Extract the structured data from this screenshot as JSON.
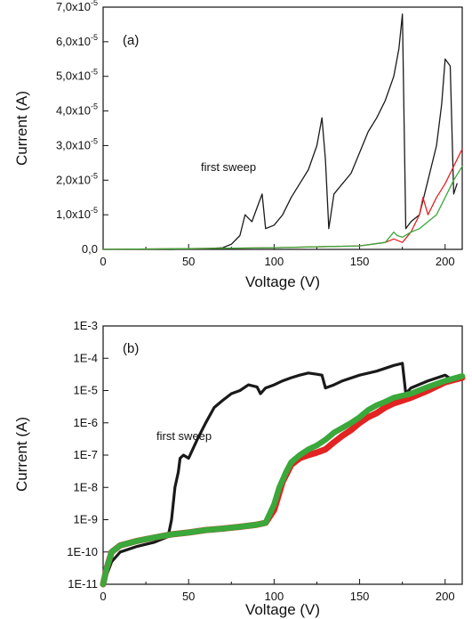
{
  "chart_data": [
    {
      "type": "line",
      "panel_label": "(a)",
      "xlabel": "Voltage (V)",
      "ylabel": "Current (A)",
      "xlim": [
        0,
        210
      ],
      "ylim": [
        0,
        7e-05
      ],
      "x_ticks": [
        "0",
        "50",
        "100",
        "150",
        "200"
      ],
      "y_ticks": [
        "0,0",
        "1,0x10-5",
        "2,0x10-5",
        "3,0x10-5",
        "4,0x10-5",
        "5,0x10-5",
        "6,0x10-5",
        "7,0x10-5"
      ],
      "annotation": "first sweep",
      "colors": [
        "#1a1a1a",
        "#e32222",
        "#3aa83a"
      ],
      "series": [
        {
          "color": "#1a1a1a",
          "x": [
            0,
            20,
            40,
            60,
            70,
            75,
            80,
            83,
            87,
            90,
            93,
            95,
            100,
            105,
            110,
            115,
            120,
            125,
            128,
            130,
            132,
            135,
            140,
            145,
            150,
            155,
            160,
            165,
            170,
            173,
            175,
            177,
            180,
            185,
            190,
            195,
            198,
            200,
            203,
            205,
            207
          ],
          "y": [
            0,
            0,
            0,
            2e-07,
            5e-07,
            1.5e-06,
            4e-06,
            1e-05,
            8e-06,
            1.2e-05,
            1.6e-05,
            6e-06,
            7e-06,
            1e-05,
            1.5e-05,
            1.9e-05,
            2.3e-05,
            3e-05,
            3.8e-05,
            2.6e-05,
            6e-06,
            1.6e-05,
            1.9e-05,
            2.2e-05,
            2.8e-05,
            3.4e-05,
            3.8e-05,
            4.3e-05,
            5e-05,
            5.8e-05,
            6.8e-05,
            6e-06,
            8e-06,
            1e-05,
            2e-05,
            3e-05,
            4.2e-05,
            5.5e-05,
            5.3e-05,
            1.6e-05,
            1.9e-05
          ]
        },
        {
          "color": "#e32222",
          "x": [
            0,
            50,
            100,
            150,
            165,
            170,
            175,
            180,
            185,
            187,
            190,
            195,
            200,
            205,
            210
          ],
          "y": [
            0,
            2e-07,
            5e-07,
            1e-06,
            2e-06,
            3e-06,
            2e-06,
            5e-06,
            1e-05,
            1.5e-05,
            1e-05,
            1.5e-05,
            1.9e-05,
            2.4e-05,
            2.9e-05
          ]
        },
        {
          "color": "#3aa83a",
          "x": [
            0,
            50,
            100,
            150,
            165,
            170,
            172,
            175,
            180,
            185,
            190,
            195,
            200,
            205,
            210
          ],
          "y": [
            0,
            2e-07,
            5e-07,
            1e-06,
            2e-06,
            5e-06,
            4e-06,
            3.5e-06,
            5e-06,
            6e-06,
            8e-06,
            1e-05,
            1.5e-05,
            2e-05,
            2.4e-05
          ]
        }
      ]
    },
    {
      "type": "line",
      "panel_label": "(b)",
      "xlabel": "Voltage (V)",
      "ylabel": "Current (A)",
      "xlim": [
        0,
        210
      ],
      "ylim": [
        1e-11,
        0.001
      ],
      "yscale": "log",
      "x_ticks": [
        "0",
        "50",
        "100",
        "150",
        "200"
      ],
      "y_ticks": [
        "1E-11",
        "1E-10",
        "1E-9",
        "1E-8",
        "1E-7",
        "1E-6",
        "1E-5",
        "1E-4",
        "1E-3"
      ],
      "annotation": "first sweep",
      "colors": [
        "#1a1a1a",
        "#e32222",
        "#3aa83a"
      ],
      "series": [
        {
          "color": "#1a1a1a",
          "x": [
            0,
            5,
            10,
            20,
            30,
            38,
            40,
            42,
            44,
            45,
            47,
            50,
            55,
            60,
            65,
            70,
            75,
            80,
            85,
            90,
            92,
            95,
            100,
            105,
            110,
            115,
            120,
            125,
            128,
            130,
            135,
            140,
            150,
            160,
            170,
            175,
            177,
            180,
            190,
            200,
            205,
            210
          ],
          "y": [
            1e-11,
            5e-11,
            1e-10,
            1.5e-10,
            2e-10,
            3e-10,
            1e-09,
            1e-08,
            3e-08,
            8e-08,
            1e-07,
            8e-08,
            3e-07,
            1e-06,
            3e-06,
            5e-06,
            8e-06,
            1e-05,
            1.5e-05,
            1.3e-05,
            8e-06,
            1.2e-05,
            1.5e-05,
            2e-05,
            2.5e-05,
            3e-05,
            3.5e-05,
            3.2e-05,
            3e-05,
            1.2e-05,
            1.5e-05,
            2e-05,
            3e-05,
            4e-05,
            6e-05,
            7e-05,
            8e-06,
            1.2e-05,
            2e-05,
            3e-05,
            2e-05,
            2.5e-05
          ]
        },
        {
          "color": "#e32222",
          "x": [
            0,
            2,
            5,
            10,
            20,
            30,
            40,
            50,
            60,
            70,
            80,
            90,
            95,
            100,
            105,
            110,
            115,
            120,
            125,
            130,
            135,
            140,
            145,
            150,
            155,
            160,
            165,
            170,
            180,
            190,
            200,
            210
          ],
          "y": [
            1e-11,
            3e-11,
            1e-10,
            1.6e-10,
            2.2e-10,
            2.8e-10,
            3.5e-10,
            4e-10,
            4.8e-10,
            5.3e-10,
            6e-10,
            7e-10,
            8e-10,
            2e-09,
            1.5e-08,
            5e-08,
            8e-08,
            1e-07,
            1.2e-07,
            1.5e-07,
            2.5e-07,
            4e-07,
            6e-07,
            1e-06,
            1.5e-06,
            2e-06,
            3e-06,
            4e-06,
            6e-06,
            1e-05,
            1.8e-05,
            2.5e-05
          ]
        },
        {
          "color": "#3aa83a",
          "x": [
            0,
            2,
            5,
            10,
            20,
            30,
            40,
            50,
            60,
            70,
            80,
            90,
            95,
            100,
            103,
            107,
            110,
            115,
            120,
            125,
            130,
            135,
            140,
            145,
            150,
            155,
            160,
            165,
            170,
            180,
            190,
            200,
            210
          ],
          "y": [
            1e-11,
            3e-11,
            1e-10,
            1.6e-10,
            2.2e-10,
            2.8e-10,
            3.5e-10,
            4e-10,
            4.8e-10,
            5.3e-10,
            6e-10,
            7e-10,
            8e-10,
            3e-09,
            1e-08,
            3e-08,
            6e-08,
            1e-07,
            1.5e-07,
            2e-07,
            3e-07,
            5e-07,
            7e-07,
            1e-06,
            1.5e-06,
            2.5e-06,
            3.5e-06,
            4.5e-06,
            6e-06,
            8e-06,
            1.3e-05,
            2e-05,
            2.8e-05
          ]
        }
      ]
    }
  ]
}
